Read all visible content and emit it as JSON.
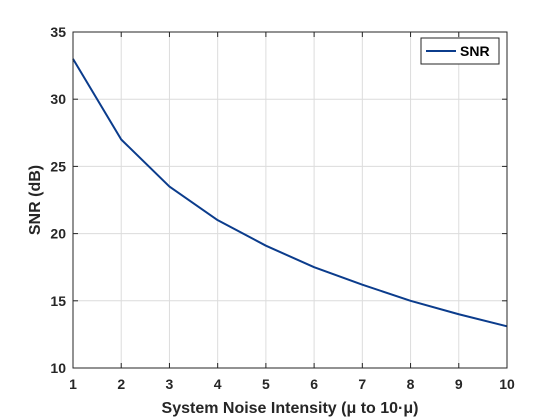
{
  "chart_data": {
    "type": "line",
    "title": "",
    "xlabel": "System Noise Intensity (μ to 10·μ)",
    "ylabel": "SNR (dB)",
    "xlim": [
      1,
      10
    ],
    "ylim": [
      10,
      35
    ],
    "xticks": [
      1,
      2,
      3,
      4,
      5,
      6,
      7,
      8,
      9,
      10
    ],
    "yticks": [
      10,
      15,
      20,
      25,
      30,
      35
    ],
    "grid": true,
    "legend_position": "top-right",
    "x": [
      1,
      2,
      3,
      4,
      5,
      6,
      7,
      8,
      9,
      10
    ],
    "series": [
      {
        "name": "SNR",
        "color": "#0b3c8c",
        "values": [
          33.0,
          27.0,
          23.5,
          21.0,
          19.1,
          17.5,
          16.2,
          15.0,
          14.0,
          13.1
        ]
      }
    ]
  }
}
